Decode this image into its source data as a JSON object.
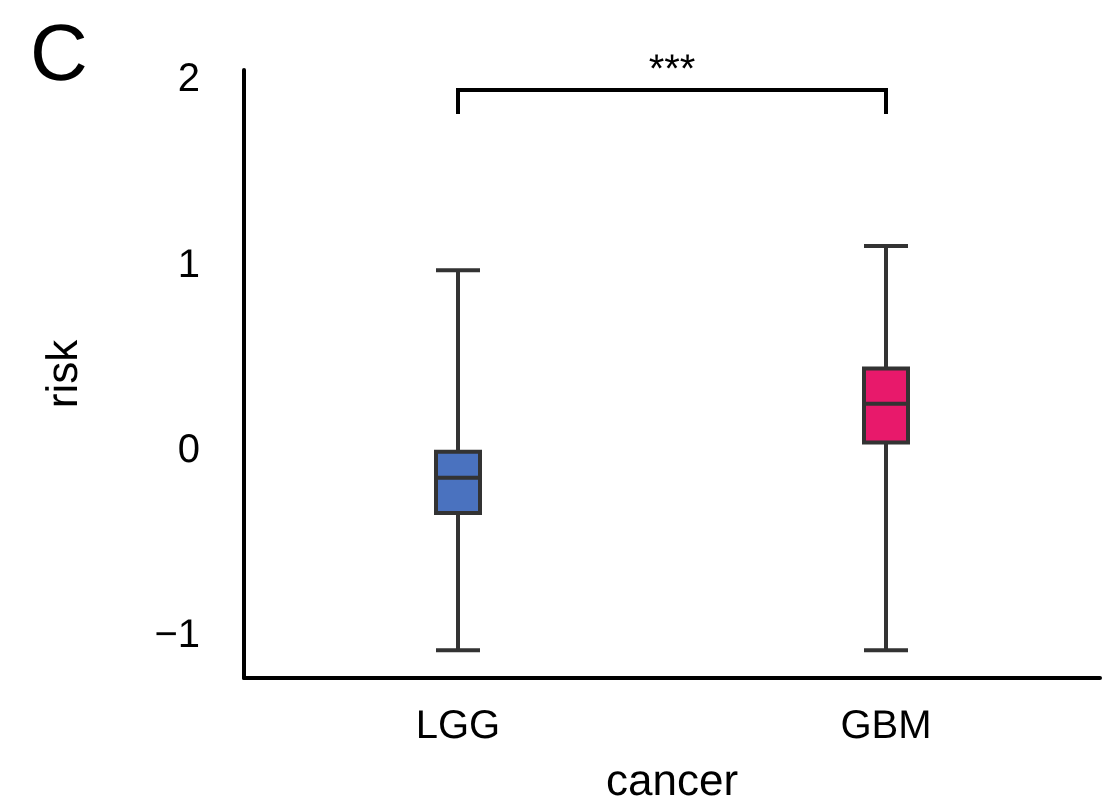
{
  "chart_data": {
    "type": "box",
    "title": "C",
    "xlabel": "cancer",
    "ylabel": "risk",
    "categories": [
      "LGG",
      "GBM"
    ],
    "colors": [
      "#4a72bf",
      "#e8196b"
    ],
    "boxes": [
      {
        "low": -1.08,
        "q1": -0.34,
        "median": -0.15,
        "q3": -0.01,
        "high": 0.97
      },
      {
        "low": -1.08,
        "q1": 0.04,
        "median": 0.25,
        "q3": 0.44,
        "high": 1.1
      }
    ],
    "ylim": [
      -1.23,
      2.05
    ],
    "yticks": [
      {
        "value": -1,
        "label": "−1"
      },
      0,
      1,
      2
    ],
    "annotations": [
      "***"
    ],
    "grid": false
  }
}
